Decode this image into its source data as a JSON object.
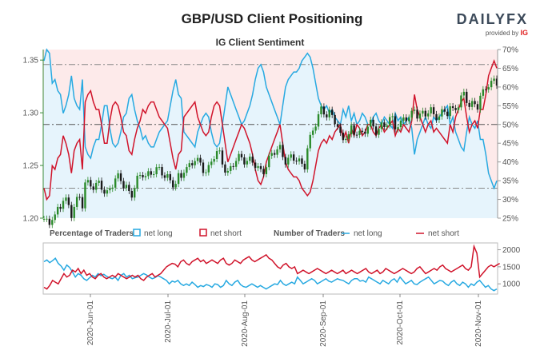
{
  "header": {
    "title": "GBP/USD Client Positioning",
    "brand": "DAILYFX",
    "brand_sub": "provided by",
    "brand_sub_logo": "IG"
  },
  "chart_data": [
    {
      "type": "candlestick+area",
      "title": "IG Client Sentiment",
      "price_axis": {
        "ticks": [
          "1.35",
          "1.30",
          "1.25",
          "1.20"
        ],
        "range": [
          1.2,
          1.36
        ]
      },
      "pct_axis": {
        "ticks": [
          "70%",
          "65%",
          "60%",
          "55%",
          "50%",
          "45%",
          "40%",
          "35%",
          "30%",
          "25%"
        ],
        "range": [
          25,
          70
        ]
      },
      "reference_lines_pct": [
        66,
        50,
        33
      ],
      "net_long_pct": [
        67,
        70,
        69,
        61,
        62,
        59,
        58,
        53,
        55,
        58,
        63,
        57,
        55,
        54,
        62,
        44,
        42,
        41,
        44,
        46,
        46,
        50,
        55,
        55,
        49,
        45,
        44,
        45,
        48,
        52,
        53,
        57,
        58,
        54,
        51,
        49,
        46,
        47,
        45,
        44,
        44,
        46,
        48,
        49,
        50,
        51,
        55,
        59,
        62,
        58,
        57,
        48,
        47,
        46,
        45,
        44,
        48,
        50,
        52,
        53,
        52,
        48,
        45,
        44,
        45,
        50,
        55,
        60,
        58,
        56,
        54,
        52,
        50,
        51,
        53,
        55,
        58,
        62,
        65,
        66,
        64,
        60,
        58,
        56,
        54,
        52,
        50,
        55,
        60,
        62,
        63,
        64,
        64,
        65,
        67,
        68,
        69,
        68,
        65,
        61,
        57,
        55,
        54,
        55,
        53,
        54,
        52,
        51,
        50,
        54,
        52,
        55,
        51,
        53,
        50,
        51,
        53,
        52,
        50,
        50,
        52,
        53,
        51,
        50,
        52,
        51,
        50,
        49,
        53,
        51,
        52,
        50,
        51,
        52,
        49,
        42,
        46,
        48,
        50,
        52,
        50,
        49,
        52,
        51,
        52,
        53,
        54,
        55,
        50,
        52,
        48,
        46,
        44,
        43,
        48,
        52,
        50,
        49,
        51,
        46,
        46,
        42,
        37,
        35,
        33,
        35
      ],
      "net_short_pct": [
        33,
        30,
        31,
        39,
        38,
        41,
        42,
        47,
        45,
        42,
        37,
        43,
        45,
        46,
        38,
        56,
        58,
        59,
        56,
        54,
        54,
        50,
        45,
        45,
        51,
        55,
        56,
        55,
        52,
        48,
        47,
        43,
        42,
        46,
        49,
        51,
        54,
        53,
        55,
        56,
        56,
        54,
        52,
        51,
        50,
        49,
        45,
        41,
        38,
        42,
        43,
        52,
        53,
        54,
        55,
        56,
        52,
        50,
        48,
        47,
        48,
        52,
        55,
        56,
        55,
        50,
        45,
        40,
        42,
        44,
        46,
        48,
        50,
        49,
        47,
        45,
        42,
        38,
        35,
        34,
        36,
        40,
        42,
        44,
        46,
        48,
        50,
        45,
        40,
        38,
        37,
        36,
        36,
        35,
        33,
        32,
        31,
        32,
        35,
        39,
        43,
        45,
        46,
        45,
        47,
        46,
        48,
        49,
        50,
        46,
        48,
        45,
        49,
        47,
        50,
        49,
        47,
        48,
        50,
        50,
        48,
        47,
        49,
        50,
        48,
        49,
        50,
        51,
        47,
        49,
        48,
        50,
        49,
        48,
        51,
        58,
        54,
        52,
        50,
        48,
        50,
        51,
        48,
        49,
        48,
        47,
        46,
        45,
        50,
        48,
        52,
        54,
        56,
        57,
        52,
        48,
        50,
        51,
        49,
        54,
        54,
        58,
        63,
        65,
        67,
        65
      ],
      "x_tick_labels": [
        "2020-Jun-01",
        "2020-Jul-01",
        "2020-Aug-01",
        "2020-Sep-01",
        "2020-Oct-01",
        "2020-Nov-01"
      ]
    },
    {
      "type": "line",
      "legend_left": {
        "heading": "Percentage of Traders",
        "net_long": "net long",
        "net_short": "net short"
      },
      "legend_right": {
        "heading": "Number of Traders",
        "net_long": "net long",
        "net_short": "net short"
      },
      "count_axis": {
        "ticks": [
          "2000",
          "1500",
          "1000"
        ],
        "range": [
          700,
          2200
        ]
      },
      "series_colors": {
        "net_long": "#27a9e1",
        "net_short": "#d0142b"
      },
      "net_long_count": [
        1650,
        1700,
        1620,
        1680,
        1750,
        1600,
        1520,
        1400,
        1550,
        1480,
        1350,
        1200,
        1300,
        1250,
        1150,
        1100,
        1180,
        1250,
        1200,
        1300,
        1240,
        1280,
        1220,
        1180,
        1150,
        1200,
        1100,
        1250,
        1300,
        1200,
        1250,
        1150,
        1180,
        1200,
        1250,
        1300,
        1260,
        1200,
        1150,
        1180,
        1240,
        1200,
        1150,
        1100,
        1000,
        1080,
        1050,
        1100,
        1000,
        950,
        1000,
        950,
        1050,
        980,
        900,
        950,
        920,
        980,
        950,
        900,
        1000,
        980,
        900,
        950,
        1100,
        1000,
        950,
        1050,
        1100,
        980,
        920,
        900,
        950,
        1000,
        950,
        900,
        950,
        900,
        850,
        900,
        950,
        1000,
        980,
        1100,
        1000,
        950,
        1000,
        1050,
        1000,
        1200,
        1100,
        1000,
        1050,
        1100,
        1150,
        1100,
        1000,
        1050,
        1100,
        1150,
        1080,
        1050,
        1100,
        1150,
        1120,
        1100,
        1050,
        1000,
        1100,
        1150,
        1150,
        1080,
        1100,
        1050,
        1200,
        1150,
        1100,
        1050,
        1000,
        1100,
        1050,
        1000,
        1100,
        1150,
        1050,
        1200,
        1100,
        1000,
        1050,
        1100,
        1000,
        980,
        1050,
        1100,
        1150,
        1200,
        1100,
        1000,
        1050,
        1100,
        1080,
        1000,
        950,
        1050,
        1100,
        1000,
        950,
        1050,
        1000,
        900,
        1000,
        950,
        1050,
        1100,
        1000,
        900,
        950,
        850,
        800,
        850
      ],
      "net_short_count": [
        900,
        850,
        950,
        1100,
        1050,
        1000,
        1150,
        1300,
        1200,
        1250,
        1400,
        1350,
        1450,
        1300,
        1400,
        1250,
        1300,
        1200,
        1150,
        1250,
        1300,
        1200,
        1150,
        1200,
        1250,
        1200,
        1300,
        1250,
        1200,
        1150,
        1200,
        1250,
        1200,
        1250,
        1150,
        1100,
        1200,
        1250,
        1300,
        1200,
        1250,
        1300,
        1400,
        1500,
        1550,
        1600,
        1580,
        1500,
        1650,
        1700,
        1600,
        1550,
        1650,
        1700,
        1750,
        1650,
        1700,
        1600,
        1650,
        1700,
        1650,
        1600,
        1700,
        1750,
        1600,
        1550,
        1600,
        1700,
        1650,
        1600,
        1700,
        1750,
        1800,
        1700,
        1650,
        1700,
        1750,
        1800,
        1850,
        1750,
        1700,
        1600,
        1500,
        1450,
        1550,
        1600,
        1500,
        1450,
        1500,
        1300,
        1350,
        1400,
        1350,
        1300,
        1350,
        1400,
        1450,
        1400,
        1350,
        1300,
        1350,
        1400,
        1350,
        1300,
        1350,
        1400,
        1300,
        1350,
        1400,
        1350,
        1300,
        1350,
        1400,
        1450,
        1350,
        1300,
        1350,
        1400,
        1300,
        1350,
        1450,
        1400,
        1350,
        1300,
        1350,
        1400,
        1450,
        1400,
        1350,
        1300,
        1350,
        1450,
        1500,
        1400,
        1300,
        1350,
        1400,
        1450,
        1400,
        1500,
        1550,
        1450,
        1400,
        1350,
        1400,
        1450,
        1500,
        1550,
        1450,
        1400,
        1500,
        2100,
        1900,
        1200,
        1300,
        1400,
        1500,
        1550,
        1500,
        1550,
        1600
      ]
    }
  ]
}
